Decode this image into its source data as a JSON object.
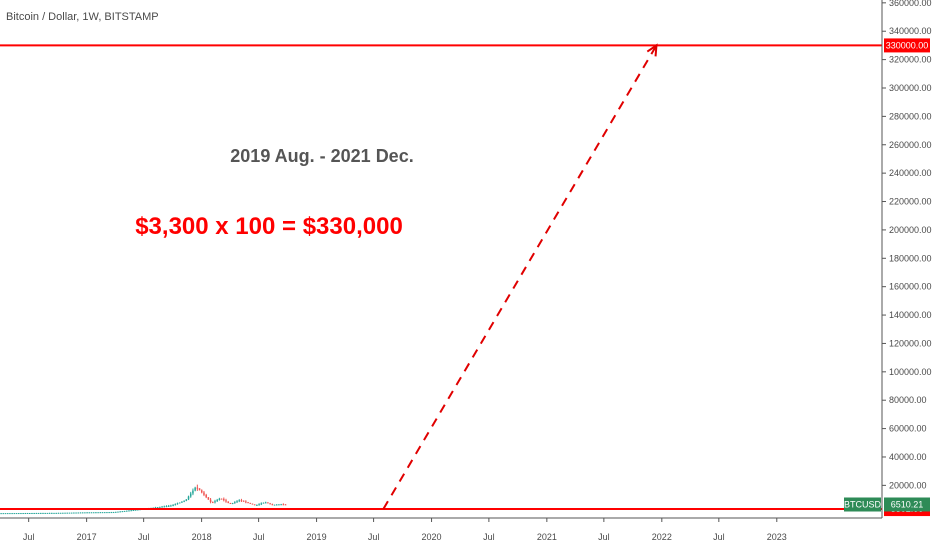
{
  "header": {
    "symbol_title": "Bitcoin / Dollar, 1W, BITSTAMP"
  },
  "annotations": {
    "period_text": "2019 Aug.  -  2021 Dec.",
    "formula_text": "$3,300 x 100 = $330,000"
  },
  "colors": {
    "level_line": "#ff0000",
    "arrow": "#e00000",
    "candle_up": "#26a69a",
    "candle_down": "#ef5350",
    "current_badge": "#2e8b57",
    "level_badge": "#ff0000",
    "axis": "#555555",
    "tick_text": "#4a4a4a"
  },
  "chart_data": {
    "type": "candlestick",
    "symbol": "BTCUSD",
    "interval": "1W",
    "exchange": "BITSTAMP",
    "y_axis": {
      "position": "right",
      "range": [
        -3000,
        362000
      ],
      "ticks": [
        {
          "value": 20000,
          "label": "20000.00"
        },
        {
          "value": 40000,
          "label": "40000.00"
        },
        {
          "value": 60000,
          "label": "60000.00"
        },
        {
          "value": 80000,
          "label": "80000.00"
        },
        {
          "value": 100000,
          "label": "100000.00"
        },
        {
          "value": 120000,
          "label": "120000.00"
        },
        {
          "value": 140000,
          "label": "140000.00"
        },
        {
          "value": 160000,
          "label": "160000.00"
        },
        {
          "value": 180000,
          "label": "180000.00"
        },
        {
          "value": 200000,
          "label": "200000.00"
        },
        {
          "value": 220000,
          "label": "220000.00"
        },
        {
          "value": 240000,
          "label": "240000.00"
        },
        {
          "value": 260000,
          "label": "260000.00"
        },
        {
          "value": 280000,
          "label": "280000.00"
        },
        {
          "value": 300000,
          "label": "300000.00"
        },
        {
          "value": 320000,
          "label": "320000.00"
        },
        {
          "value": 340000,
          "label": "340000.00"
        },
        {
          "value": 360000,
          "label": "360000.00"
        }
      ]
    },
    "x_axis": {
      "range": [
        "2016-04-01",
        "2023-12-01"
      ],
      "ticks": [
        {
          "date": "2016-07-01",
          "label": "Jul"
        },
        {
          "date": "2017-01-01",
          "label": "2017"
        },
        {
          "date": "2017-07-01",
          "label": "Jul"
        },
        {
          "date": "2018-01-01",
          "label": "2018"
        },
        {
          "date": "2018-07-01",
          "label": "Jul"
        },
        {
          "date": "2019-01-01",
          "label": "2019"
        },
        {
          "date": "2019-07-01",
          "label": "Jul"
        },
        {
          "date": "2020-01-01",
          "label": "2020"
        },
        {
          "date": "2020-07-01",
          "label": "Jul"
        },
        {
          "date": "2021-01-01",
          "label": "2021"
        },
        {
          "date": "2021-07-01",
          "label": "Jul"
        },
        {
          "date": "2022-01-01",
          "label": "2022"
        },
        {
          "date": "2022-07-01",
          "label": "Jul"
        },
        {
          "date": "2023-01-01",
          "label": "2023"
        }
      ]
    },
    "price_path": [
      {
        "date": "2016-04-01",
        "price": 420
      },
      {
        "date": "2016-10-01",
        "price": 620
      },
      {
        "date": "2017-01-01",
        "price": 980
      },
      {
        "date": "2017-04-01",
        "price": 1200
      },
      {
        "date": "2017-06-01",
        "price": 2600
      },
      {
        "date": "2017-08-01",
        "price": 4200
      },
      {
        "date": "2017-10-01",
        "price": 5800
      },
      {
        "date": "2017-11-15",
        "price": 9500
      },
      {
        "date": "2017-12-17",
        "price": 19000
      },
      {
        "date": "2018-01-05",
        "price": 15000
      },
      {
        "date": "2018-02-05",
        "price": 7500
      },
      {
        "date": "2018-03-05",
        "price": 11000
      },
      {
        "date": "2018-04-05",
        "price": 6800
      },
      {
        "date": "2018-05-05",
        "price": 9600
      },
      {
        "date": "2018-06-25",
        "price": 5900
      },
      {
        "date": "2018-07-25",
        "price": 8200
      },
      {
        "date": "2018-08-15",
        "price": 6300
      },
      {
        "date": "2018-09-15",
        "price": 6700
      },
      {
        "date": "2018-10-01",
        "price": 6510
      }
    ],
    "horizontal_levels": [
      {
        "value": 330000,
        "label": "330000.00"
      },
      {
        "value": 3302,
        "label": "3302.00"
      }
    ],
    "current_price": {
      "symbol": "BTCUSD",
      "value": 6510.21,
      "label": "6510.21"
    },
    "arrow": {
      "start": {
        "date": "2019-08-01",
        "price": 3302
      },
      "end": {
        "date": "2021-12-15",
        "price": 330000
      },
      "style": "dashed"
    }
  }
}
